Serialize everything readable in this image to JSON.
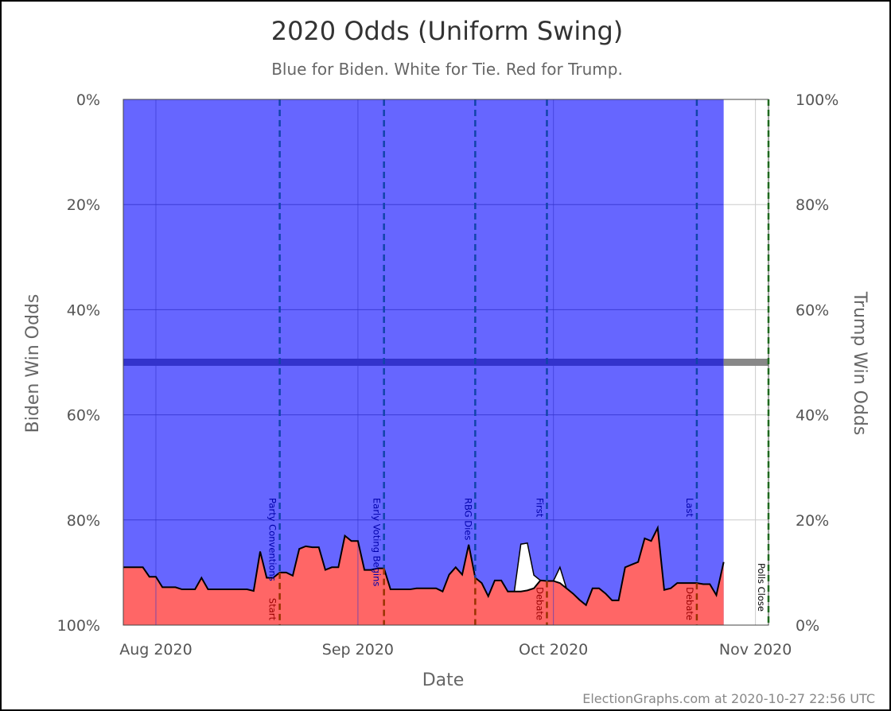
{
  "chart_data": {
    "type": "area",
    "title": "2020 Odds (Uniform Swing)",
    "subtitle": "Blue for Biden. White for Tie. Red for Trump.",
    "xlabel": "Date",
    "ylabel_left": "Biden Win Odds",
    "ylabel_right": "Trump Win Odds",
    "x_range": [
      "2020-07-27",
      "2020-11-03"
    ],
    "y_range": [
      0,
      100
    ],
    "grid": true,
    "x_ticks": [
      {
        "date": "2020-08-01",
        "label": "Aug 2020"
      },
      {
        "date": "2020-09-01",
        "label": "Sep 2020"
      },
      {
        "date": "2020-10-01",
        "label": "Oct 2020"
      },
      {
        "date": "2020-11-01",
        "label": "Nov 2020"
      }
    ],
    "left_ticks": [
      {
        "value": 0,
        "label": "100%"
      },
      {
        "value": 20,
        "label": "80%"
      },
      {
        "value": 40,
        "label": "60%"
      },
      {
        "value": 60,
        "label": "40%"
      },
      {
        "value": 80,
        "label": "20%"
      },
      {
        "value": 100,
        "label": "0%"
      }
    ],
    "right_ticks": [
      {
        "value": 0,
        "label": "0%"
      },
      {
        "value": 20,
        "label": "20%"
      },
      {
        "value": 40,
        "label": "40%"
      },
      {
        "value": 60,
        "label": "60%"
      },
      {
        "value": 80,
        "label": "80%"
      },
      {
        "value": 100,
        "label": "100%"
      }
    ],
    "midline": 50,
    "colors": {
      "biden": "#6666ff",
      "trump": "#ff6666",
      "tie": "#ffffff",
      "grid_on_blue": "#3333cc",
      "grid": "#cccccc",
      "midline": "#3333cc",
      "midline_future": "#888888",
      "event": "#1144aa",
      "event_on_red": "#993300",
      "polls_close": "#008800"
    },
    "series": [
      {
        "name": "Trump",
        "x": [
          "2020-07-27",
          "2020-07-28",
          "2020-07-29",
          "2020-07-30",
          "2020-07-31",
          "2020-08-01",
          "2020-08-02",
          "2020-08-03",
          "2020-08-04",
          "2020-08-05",
          "2020-08-06",
          "2020-08-07",
          "2020-08-08",
          "2020-08-09",
          "2020-08-10",
          "2020-08-11",
          "2020-08-12",
          "2020-08-13",
          "2020-08-14",
          "2020-08-15",
          "2020-08-16",
          "2020-08-17",
          "2020-08-18",
          "2020-08-19",
          "2020-08-20",
          "2020-08-21",
          "2020-08-22",
          "2020-08-23",
          "2020-08-24",
          "2020-08-25",
          "2020-08-26",
          "2020-08-27",
          "2020-08-28",
          "2020-08-29",
          "2020-08-30",
          "2020-08-31",
          "2020-09-01",
          "2020-09-02",
          "2020-09-03",
          "2020-09-04",
          "2020-09-05",
          "2020-09-06",
          "2020-09-07",
          "2020-09-08",
          "2020-09-09",
          "2020-09-10",
          "2020-09-11",
          "2020-09-12",
          "2020-09-13",
          "2020-09-14",
          "2020-09-15",
          "2020-09-16",
          "2020-09-17",
          "2020-09-18",
          "2020-09-19",
          "2020-09-20",
          "2020-09-21",
          "2020-09-22",
          "2020-09-23",
          "2020-09-24",
          "2020-09-25",
          "2020-09-26",
          "2020-09-27",
          "2020-09-28",
          "2020-09-29",
          "2020-09-30",
          "2020-10-01",
          "2020-10-02",
          "2020-10-03",
          "2020-10-04",
          "2020-10-05",
          "2020-10-06",
          "2020-10-07",
          "2020-10-08",
          "2020-10-09",
          "2020-10-10",
          "2020-10-11",
          "2020-10-12",
          "2020-10-13",
          "2020-10-14",
          "2020-10-15",
          "2020-10-16",
          "2020-10-17",
          "2020-10-18",
          "2020-10-19",
          "2020-10-20",
          "2020-10-21",
          "2020-10-22",
          "2020-10-23",
          "2020-10-24",
          "2020-10-25",
          "2020-10-26",
          "2020-10-27"
        ],
        "values": [
          11.0,
          11.0,
          11.0,
          11.0,
          9.2,
          9.2,
          7.2,
          7.2,
          7.2,
          6.8,
          6.8,
          6.8,
          9.0,
          6.8,
          6.8,
          6.8,
          6.8,
          6.8,
          6.8,
          6.8,
          6.5,
          14.0,
          9.0,
          9.0,
          10.0,
          10.0,
          9.4,
          14.5,
          15.0,
          14.8,
          14.8,
          10.5,
          11.0,
          11.0,
          17.0,
          16.0,
          16.0,
          10.5,
          10.5,
          10.8,
          10.8,
          6.8,
          6.8,
          6.8,
          6.8,
          7.0,
          7.0,
          7.0,
          7.0,
          6.4,
          9.6,
          11.0,
          9.6,
          15.3,
          9.0,
          8.0,
          5.5,
          8.5,
          8.5,
          6.4,
          6.4,
          6.4,
          6.6,
          7.0,
          8.5,
          8.4,
          8.4,
          8.0,
          7.0,
          6.0,
          4.8,
          3.8,
          7.0,
          7.0,
          6.0,
          4.7,
          4.7,
          11.0,
          11.5,
          12.0,
          16.5,
          16.0,
          18.5,
          6.7,
          7.0,
          8.0,
          8.0,
          8.0,
          8.0,
          7.8,
          7.8,
          5.7,
          12.0
        ]
      },
      {
        "name": "Tie",
        "x": [
          "2020-09-24",
          "2020-09-25",
          "2020-09-26",
          "2020-09-27",
          "2020-09-28",
          "2020-09-29",
          "2020-09-30",
          "2020-10-01",
          "2020-10-02",
          "2020-10-03"
        ],
        "values": [
          0,
          0,
          9.0,
          9.0,
          2.5,
          0,
          0,
          0,
          3.0,
          0
        ]
      }
    ],
    "events": [
      {
        "date": "2020-08-20",
        "label": "Party Conventions Start",
        "label_top": "Party Conventions",
        "label_bottom": "Start"
      },
      {
        "date": "2020-09-05",
        "label": "Early Voting Begins",
        "label_top": "Early Voting Begins",
        "label_bottom": ""
      },
      {
        "date": "2020-09-19",
        "label": "RBG Dies",
        "label_top": "RBG Dies",
        "label_bottom": ""
      },
      {
        "date": "2020-09-30",
        "label": "First Debate",
        "label_top": "First",
        "label_bottom": "Debate"
      },
      {
        "date": "2020-10-23",
        "label": "Last Debate",
        "label_top": "Last",
        "label_bottom": "Debate"
      },
      {
        "date": "2020-11-03",
        "label": "Polls Close",
        "label_top": "Polls Close",
        "label_bottom": ""
      }
    ],
    "credit": "ElectionGraphs.com at 2020-10-27 22:56 UTC"
  }
}
